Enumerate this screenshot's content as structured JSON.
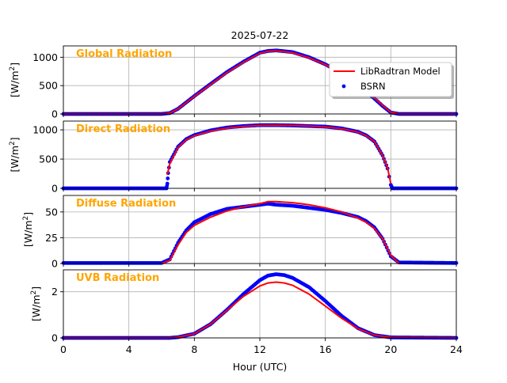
{
  "chart_data": {
    "type": "line",
    "title": "2025-07-22",
    "xlabel": "Hour (UTC)",
    "xlim": [
      0,
      24
    ],
    "x_ticks": [
      "0",
      "4",
      "8",
      "12",
      "16",
      "20",
      "24"
    ],
    "grid": true,
    "legend": {
      "location": "upper right of first panel",
      "entries": [
        {
          "label": "LibRadtran Model",
          "color": "#ff0000",
          "marker": "line"
        },
        {
          "label": "BSRN",
          "color": "#0000ff",
          "marker": "dot"
        }
      ]
    },
    "panels": [
      {
        "label": "Global Radiation",
        "label_color": "#ffa500",
        "ylabel": "[W/m²]",
        "ylabel_base": "[W/m",
        "ylabel_sup": "2",
        "ylabel_end": "]",
        "ylim": [
          0,
          1200
        ],
        "y_ticks": [
          "0",
          "500",
          "1000"
        ],
        "model": {
          "name": "LibRadtran Model",
          "x": [
            0,
            6.0,
            6.5,
            7,
            8,
            9,
            10,
            11,
            12,
            12.5,
            13,
            14,
            15,
            16,
            17,
            18,
            19,
            19.5,
            20,
            20.5,
            24
          ],
          "y": [
            0,
            0,
            15,
            90,
            310,
            520,
            730,
            910,
            1070,
            1105,
            1115,
            1080,
            990,
            870,
            720,
            520,
            280,
            150,
            30,
            0,
            0
          ]
        },
        "observed": {
          "name": "BSRN",
          "x": [
            0,
            6.0,
            6.5,
            7,
            8,
            9,
            10,
            11,
            12,
            12.5,
            13,
            14,
            15,
            16,
            17,
            18,
            19,
            19.5,
            20,
            20.5,
            24
          ],
          "y": [
            0,
            0,
            15,
            90,
            315,
            530,
            740,
            920,
            1080,
            1110,
            1120,
            1090,
            1000,
            875,
            720,
            510,
            270,
            140,
            25,
            0,
            0
          ]
        }
      },
      {
        "label": "Direct Radiation",
        "label_color": "#ffa500",
        "ylabel": "[W/m²]",
        "ylabel_base": "[W/m",
        "ylabel_sup": "2",
        "ylabel_end": "]",
        "ylim": [
          0,
          1150
        ],
        "y_ticks": [
          "0",
          "500",
          "1000"
        ],
        "model": {
          "name": "LibRadtran Model",
          "x": [
            6.35,
            6.5,
            7,
            7.5,
            8,
            9,
            10,
            11,
            12,
            13,
            14,
            15,
            16,
            17,
            18,
            18.5,
            19,
            19.5,
            19.8,
            20.0
          ],
          "y": [
            230,
            420,
            700,
            830,
            900,
            980,
            1030,
            1060,
            1075,
            1080,
            1075,
            1065,
            1050,
            1020,
            960,
            900,
            800,
            560,
            350,
            80
          ]
        },
        "observed": {
          "name": "BSRN",
          "x": [
            0,
            6.3,
            6.35,
            6.4,
            6.5,
            7,
            7.5,
            8,
            9,
            10,
            11,
            12,
            13,
            14,
            15,
            16,
            17,
            18,
            18.5,
            19,
            19.5,
            19.8,
            20.0,
            20.1,
            24
          ],
          "y": [
            0,
            0,
            80,
            260,
            450,
            710,
            840,
            910,
            990,
            1040,
            1065,
            1080,
            1080,
            1075,
            1065,
            1055,
            1025,
            965,
            905,
            800,
            560,
            340,
            60,
            0,
            0
          ]
        }
      },
      {
        "label": "Diffuse Radiation",
        "label_color": "#ffa500",
        "ylabel": "[W/m²]",
        "ylabel_base": "[W/m",
        "ylabel_sup": "2",
        "ylabel_end": "]",
        "ylim": [
          0,
          66
        ],
        "y_ticks": [
          "0",
          "25",
          "50"
        ],
        "model": {
          "name": "LibRadtran Model",
          "x": [
            6.0,
            6.5,
            7,
            7.5,
            8,
            9,
            10,
            11,
            12,
            12.5,
            13,
            14,
            15,
            16,
            17,
            18,
            18.5,
            19,
            19.5,
            20,
            20.5
          ],
          "y": [
            0,
            3,
            18,
            30,
            37,
            45,
            51,
            55,
            58,
            60,
            60,
            59,
            57,
            54,
            50,
            44,
            40,
            34,
            24,
            8,
            0
          ]
        },
        "observed": {
          "name": "BSRN",
          "x": [
            0,
            6.0,
            6.5,
            7,
            7.5,
            8,
            9,
            10,
            11,
            12,
            12.5,
            13,
            14,
            15,
            16,
            17,
            18,
            18.5,
            19,
            19.5,
            20,
            20.5,
            24
          ],
          "y": [
            0.5,
            0.5,
            4,
            20,
            32,
            40,
            48,
            53,
            55,
            57,
            58,
            57,
            56,
            54,
            52,
            49,
            45,
            41,
            35,
            24,
            7,
            1,
            0.5
          ]
        }
      },
      {
        "label": "UVB Radiation",
        "label_color": "#ffa500",
        "ylabel": "[W/m²]",
        "ylabel_base": "[W/m",
        "ylabel_sup": "2",
        "ylabel_end": "]",
        "ylim": [
          0,
          2.95
        ],
        "y_ticks": [
          "0",
          "2"
        ],
        "model": {
          "name": "LibRadtran Model",
          "x": [
            0,
            6.5,
            7,
            8,
            9,
            10,
            11,
            12,
            12.5,
            13,
            13.5,
            14,
            15,
            16,
            17,
            18,
            19,
            20,
            24
          ],
          "y": [
            0,
            0,
            0.03,
            0.18,
            0.6,
            1.2,
            1.8,
            2.25,
            2.38,
            2.42,
            2.38,
            2.28,
            1.9,
            1.38,
            0.85,
            0.4,
            0.12,
            0.02,
            0
          ]
        },
        "observed": {
          "name": "BSRN",
          "x": [
            0,
            6.5,
            7,
            8,
            9,
            10,
            11,
            12,
            12.5,
            13,
            13.5,
            14,
            15,
            16,
            17,
            18,
            19,
            20,
            24
          ],
          "y": [
            0,
            0,
            0.03,
            0.18,
            0.6,
            1.22,
            1.9,
            2.5,
            2.7,
            2.76,
            2.72,
            2.6,
            2.2,
            1.6,
            0.95,
            0.42,
            0.12,
            0.02,
            0
          ]
        }
      }
    ]
  }
}
